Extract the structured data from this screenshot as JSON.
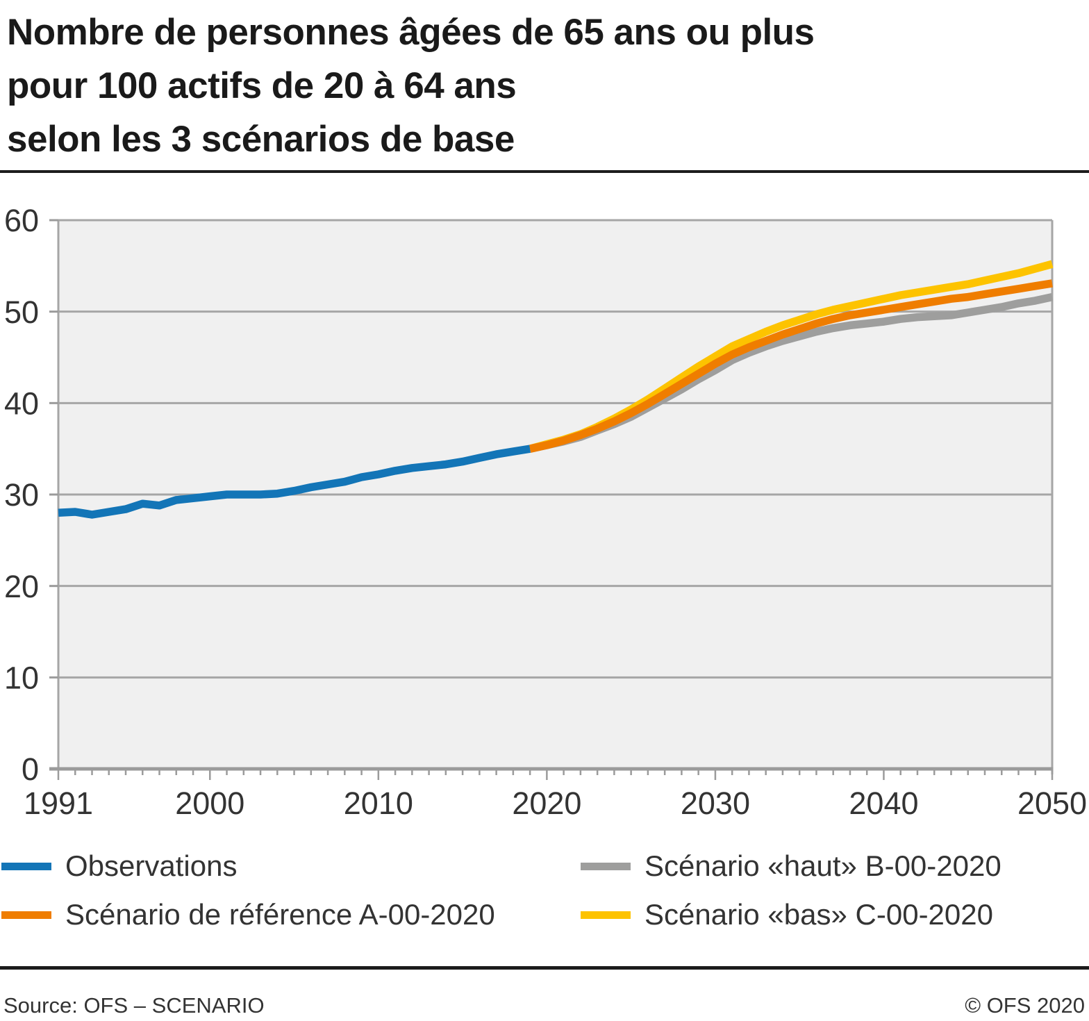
{
  "title": {
    "line1": "Nombre de personnes âgées de 65 ans ou plus",
    "line2": "pour 100 actifs de 20 à 64 ans",
    "line3": "selon les 3 scénarios de base"
  },
  "legend": {
    "items": [
      {
        "id": "observations",
        "label": "Observations",
        "color": "#1375b7"
      },
      {
        "id": "reference",
        "label": "Scénario de référence A-00-2020",
        "color": "#ef7d00"
      },
      {
        "id": "haut",
        "label": "Scénario «haut» B-00-2020",
        "color": "#9e9e9d"
      },
      {
        "id": "bas",
        "label": "Scénario «bas» C-00-2020",
        "color": "#fdc300"
      }
    ]
  },
  "footer": {
    "source": "Source: OFS – SCENARIO",
    "copyright": "© OFS 2020"
  },
  "colors": {
    "plot_background": "#f0f0f0",
    "gridline": "#a6a6a6",
    "axis": "#9b9b9b",
    "tick": "#9b9b9b",
    "text": "#333333",
    "rule": "#1c1c1c"
  },
  "chart_data": {
    "type": "line",
    "title": "Nombre de personnes âgées de 65 ans ou plus pour 100 actifs de 20 à 64 ans selon les 3 scénarios de base",
    "xlabel": "",
    "ylabel": "",
    "x_range": [
      1991,
      2050
    ],
    "y_range": [
      0,
      60
    ],
    "x_ticks": [
      1991,
      2000,
      2010,
      2020,
      2030,
      2040,
      2050
    ],
    "y_ticks": [
      0,
      10,
      20,
      30,
      40,
      50,
      60
    ],
    "grid": true,
    "legend_position": "bottom",
    "series": [
      {
        "id": "observations",
        "name": "Observations",
        "color": "#1375b7",
        "start_year": 1991,
        "values": [
          28.0,
          28.1,
          27.8,
          28.1,
          28.4,
          29.0,
          28.8,
          29.4,
          29.6,
          29.8,
          30.0,
          30.0,
          30.0,
          30.1,
          30.4,
          30.8,
          31.1,
          31.4,
          31.9,
          32.2,
          32.6,
          32.9,
          33.1,
          33.3,
          33.6,
          34.0,
          34.4,
          34.7,
          35.0
        ]
      },
      {
        "id": "reference",
        "name": "Scénario de référence A-00-2020",
        "color": "#ef7d00",
        "start_year": 2019,
        "values": [
          35.0,
          35.4,
          35.9,
          36.5,
          37.2,
          38.0,
          38.9,
          39.9,
          41.0,
          42.1,
          43.2,
          44.3,
          45.3,
          46.1,
          46.8,
          47.5,
          48.1,
          48.7,
          49.2,
          49.6,
          49.9,
          50.2,
          50.5,
          50.8,
          51.1,
          51.4,
          51.6,
          51.9,
          52.2,
          52.5,
          52.8,
          53.1
        ]
      },
      {
        "id": "haut",
        "name": "Scénario «haut» B-00-2020",
        "color": "#9e9e9d",
        "start_year": 2019,
        "values": [
          35.0,
          35.4,
          35.8,
          36.3,
          37.0,
          37.7,
          38.5,
          39.5,
          40.5,
          41.5,
          42.6,
          43.6,
          44.7,
          45.5,
          46.2,
          46.8,
          47.3,
          47.8,
          48.2,
          48.5,
          48.7,
          48.9,
          49.2,
          49.4,
          49.5,
          49.6,
          49.9,
          50.2,
          50.5,
          50.9,
          51.2,
          51.6
        ]
      },
      {
        "id": "bas",
        "name": "Scénario «bas» C-00-2020",
        "color": "#fdc300",
        "start_year": 2019,
        "values": [
          35.0,
          35.5,
          36.0,
          36.6,
          37.4,
          38.3,
          39.3,
          40.4,
          41.6,
          42.8,
          44.0,
          45.1,
          46.2,
          47.0,
          47.8,
          48.5,
          49.1,
          49.7,
          50.2,
          50.6,
          51.0,
          51.4,
          51.8,
          52.1,
          52.4,
          52.7,
          53.0,
          53.4,
          53.8,
          54.2,
          54.7,
          55.2
        ]
      }
    ]
  }
}
